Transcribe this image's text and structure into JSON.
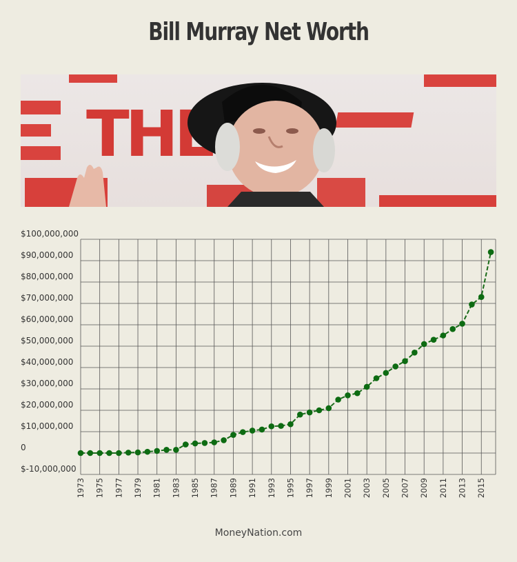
{
  "title": "Bill Murray Net Worth",
  "footer": "MoneyNation.com",
  "photo": {
    "backdrop_letters": [
      "THE"
    ]
  },
  "colors": {
    "line": "#1a6b1a",
    "point": "#0d6b12",
    "grid": "#555555",
    "background": "#eeece1",
    "title": "#333333"
  },
  "chart_data": {
    "type": "line",
    "title": "",
    "xlabel": "",
    "ylabel": "",
    "x": [
      1973,
      1974,
      1975,
      1976,
      1977,
      1978,
      1979,
      1980,
      1981,
      1982,
      1983,
      1984,
      1985,
      1986,
      1987,
      1988,
      1989,
      1990,
      1991,
      1992,
      1993,
      1994,
      1995,
      1996,
      1997,
      1998,
      1999,
      2000,
      2001,
      2002,
      2003,
      2004,
      2005,
      2006,
      2007,
      2008,
      2009,
      2010,
      2011,
      2012,
      2013,
      2014,
      2015,
      2016
    ],
    "x_tick_labels": [
      "1973",
      "1975",
      "1977",
      "1979",
      "1981",
      "1983",
      "1985",
      "1987",
      "1989",
      "1991",
      "1993",
      "1995",
      "1997",
      "1999",
      "2001",
      "2003",
      "2005",
      "2007",
      "2009",
      "2011",
      "2013",
      "2015"
    ],
    "y_tick_values": [
      100000000,
      90000000,
      80000000,
      70000000,
      60000000,
      50000000,
      40000000,
      30000000,
      20000000,
      10000000,
      0,
      -10000000
    ],
    "y_tick_labels": [
      "$100,000,000",
      "$90,000,000",
      "$80,000,000",
      "$70,000,000",
      "$60,000,000",
      "$50,000,000",
      "$40,000,000",
      "$30,000,000",
      "$20,000,000",
      "$10,000,000",
      "0",
      "$-10,000,000"
    ],
    "ylim": [
      -10000000,
      100000000
    ],
    "grid": true,
    "series": [
      {
        "values": [
          0,
          0,
          0,
          0,
          0,
          200000,
          300000,
          600000,
          1000000,
          1500000,
          1500000,
          4000000,
          4500000,
          4700000,
          5000000,
          6000000,
          8500000,
          9800000,
          10500000,
          11000000,
          12500000,
          12700000,
          13500000,
          18000000,
          19000000,
          20000000,
          21000000,
          25000000,
          27000000,
          28000000,
          31000000,
          35000000,
          37500000,
          40500000,
          43000000,
          47000000,
          51000000,
          53000000,
          55000000,
          58000000,
          60500000,
          69500000,
          73000000,
          94000000
        ]
      }
    ]
  }
}
